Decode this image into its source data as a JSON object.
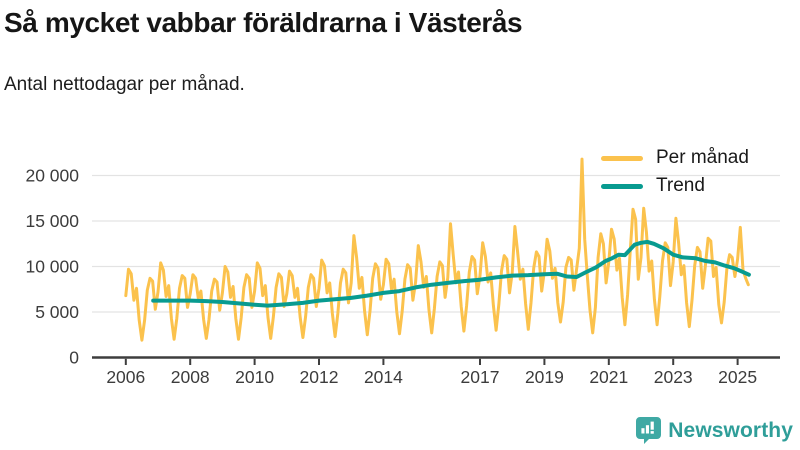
{
  "header": {
    "title": "Så mycket vabbar föräldrarna i Västerås",
    "subtitle": "Antal nettodagar per månad."
  },
  "legend": {
    "items": [
      {
        "label": "Per månad",
        "color": "#FBC24D"
      },
      {
        "label": "Trend",
        "color": "#089B90"
      }
    ]
  },
  "footer": {
    "brand": "Newsworthy"
  },
  "colors": {
    "monthly_line": "#FBC24D",
    "trend_line": "#089B90",
    "gridline": "#e3e3e3",
    "axis": "#3e3e3e",
    "tick_label": "#3c3c3c",
    "brand_teal": "#3FA9A4"
  },
  "chart_data": {
    "type": "line",
    "title": "Så mycket vabbar föräldrarna i Västerås",
    "subtitle": "Antal nettodagar per månad.",
    "xlabel": "",
    "ylabel": "Antal nettodagar",
    "grid": true,
    "legend_position": "top-right",
    "xlim": [
      2004.95,
      2026.3
    ],
    "ylim": [
      0,
      22500
    ],
    "x_ticks": [
      2006,
      2008,
      2010,
      2012,
      2014,
      2017,
      2019,
      2021,
      2023,
      2025
    ],
    "y_ticks": [
      0,
      5000,
      10000,
      15000,
      20000
    ],
    "y_tick_labels": [
      "0",
      "5 000",
      "10 000",
      "15 000",
      "20 000"
    ],
    "series": [
      {
        "name": "Per månad",
        "color": "#FBC24D",
        "start_year": 2006,
        "start_month": 1,
        "values": [
          6800,
          9700,
          9200,
          6300,
          7600,
          4100,
          1900,
          4100,
          7400,
          8700,
          8400,
          5300,
          7200,
          10400,
          9600,
          6700,
          7900,
          4300,
          2000,
          4300,
          7600,
          9000,
          8700,
          5500,
          7000,
          9100,
          8700,
          6500,
          7300,
          4200,
          2100,
          4200,
          7300,
          8600,
          8300,
          5200,
          7100,
          10000,
          9400,
          6600,
          7800,
          4300,
          2000,
          4400,
          7700,
          9100,
          8700,
          5500,
          7300,
          10400,
          9800,
          6800,
          7900,
          4400,
          2100,
          4500,
          7700,
          9200,
          8800,
          5600,
          7000,
          9500,
          9000,
          6600,
          7600,
          4400,
          2200,
          4500,
          7700,
          9100,
          8700,
          5600,
          7600,
          10700,
          10100,
          7100,
          8200,
          4800,
          2300,
          4800,
          8200,
          9700,
          9300,
          6000,
          8200,
          13400,
          11000,
          7600,
          8800,
          5100,
          2500,
          5100,
          8700,
          10300,
          9800,
          6400,
          8000,
          10800,
          10300,
          7500,
          8600,
          5000,
          2600,
          5100,
          8600,
          10200,
          9800,
          6300,
          8300,
          12300,
          10500,
          7700,
          8900,
          5200,
          2700,
          5400,
          8900,
          10500,
          10100,
          6600,
          8800,
          14700,
          11300,
          8200,
          9400,
          5600,
          2900,
          5700,
          9400,
          11100,
          10700,
          7000,
          9000,
          12600,
          11100,
          8300,
          9300,
          5700,
          3000,
          5800,
          9500,
          11200,
          10800,
          7100,
          9300,
          14400,
          11600,
          8600,
          9700,
          5900,
          3100,
          6000,
          9800,
          11600,
          11100,
          7300,
          9500,
          13000,
          11700,
          8700,
          9800,
          6000,
          3900,
          6100,
          9900,
          11000,
          10700,
          7400,
          9700,
          12000,
          21800,
          13000,
          9000,
          5200,
          2700,
          5500,
          11000,
          13600,
          12500,
          8200,
          10500,
          14100,
          13000,
          9600,
          10900,
          6600,
          3600,
          6900,
          11800,
          16300,
          15200,
          8600,
          11000,
          16400,
          13800,
          9500,
          10600,
          6400,
          3600,
          6700,
          10600,
          12600,
          12100,
          7900,
          10500,
          15300,
          12600,
          9100,
          10100,
          6000,
          3400,
          6300,
          10100,
          12100,
          11600,
          7600,
          10100,
          13100,
          12800,
          8900,
          9900,
          5800,
          3800,
          6100,
          9800,
          11300,
          11000,
          8900,
          10800,
          14300,
          9600,
          8700,
          8000
        ]
      },
      {
        "name": "Trend",
        "color": "#089B90",
        "points": [
          [
            2006.85,
            6250
          ],
          [
            2007.0,
            6250
          ],
          [
            2007.5,
            6250
          ],
          [
            2008.0,
            6250
          ],
          [
            2008.5,
            6200
          ],
          [
            2009.0,
            6100
          ],
          [
            2009.5,
            5950
          ],
          [
            2010.0,
            5800
          ],
          [
            2010.4,
            5700
          ],
          [
            2011.0,
            5850
          ],
          [
            2011.5,
            6000
          ],
          [
            2012.0,
            6250
          ],
          [
            2012.5,
            6400
          ],
          [
            2013.0,
            6550
          ],
          [
            2013.5,
            6800
          ],
          [
            2014.0,
            7100
          ],
          [
            2014.5,
            7300
          ],
          [
            2015.0,
            7700
          ],
          [
            2015.5,
            8000
          ],
          [
            2016.0,
            8200
          ],
          [
            2016.5,
            8400
          ],
          [
            2017.0,
            8550
          ],
          [
            2017.5,
            8800
          ],
          [
            2018.0,
            9000
          ],
          [
            2018.5,
            9050
          ],
          [
            2019.0,
            9150
          ],
          [
            2019.4,
            9200
          ],
          [
            2019.7,
            8900
          ],
          [
            2020.0,
            8850
          ],
          [
            2020.3,
            9400
          ],
          [
            2020.6,
            9900
          ],
          [
            2020.9,
            10600
          ],
          [
            2021.1,
            10900
          ],
          [
            2021.3,
            11300
          ],
          [
            2021.5,
            11250
          ],
          [
            2021.8,
            12400
          ],
          [
            2022.0,
            12600
          ],
          [
            2022.2,
            12700
          ],
          [
            2022.4,
            12500
          ],
          [
            2022.7,
            12000
          ],
          [
            2023.0,
            11300
          ],
          [
            2023.3,
            11000
          ],
          [
            2023.7,
            10900
          ],
          [
            2024.0,
            10600
          ],
          [
            2024.3,
            10450
          ],
          [
            2024.6,
            10100
          ],
          [
            2024.9,
            9800
          ],
          [
            2025.1,
            9500
          ],
          [
            2025.35,
            9100
          ]
        ]
      }
    ]
  }
}
